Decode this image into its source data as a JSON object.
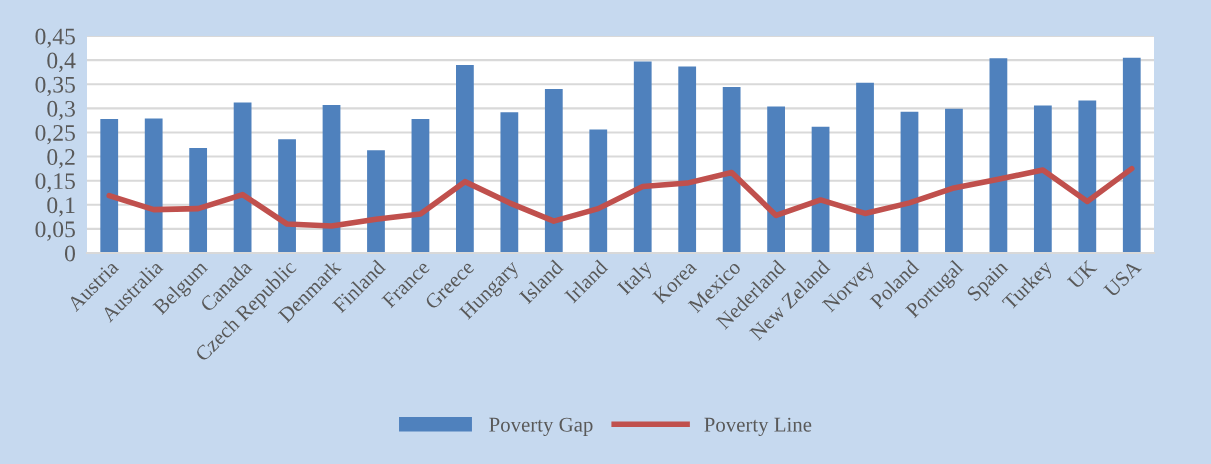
{
  "chart_data": {
    "type": "bar",
    "categories": [
      "Austria",
      "Australia",
      "Belgum",
      "Canada",
      "Czech Republic",
      "Denmark",
      "Finland",
      "France",
      "Greece",
      "Hungary",
      "Island",
      "Irland",
      "Italy",
      "Korea",
      "Mexico",
      "Nederland",
      "New Zeland",
      "Norvey",
      "Poland",
      "Portugal",
      "Spain",
      "Turkey",
      "UK",
      "USA"
    ],
    "series": [
      {
        "name": "Poverty Gap",
        "color": "#4f81bd",
        "values": [
          0.278,
          0.279,
          0.218,
          0.312,
          0.236,
          0.307,
          0.213,
          0.278,
          0.39,
          0.292,
          0.34,
          0.256,
          0.397,
          0.387,
          0.344,
          0.304,
          0.262,
          0.353,
          0.293,
          0.299,
          0.404,
          0.306,
          0.316,
          0.405
        ]
      },
      {
        "name": "Poverty Line",
        "type": "line",
        "color": "#c0504d",
        "values": [
          0.119,
          0.09,
          0.092,
          0.121,
          0.06,
          0.056,
          0.07,
          0.081,
          0.148,
          0.104,
          0.066,
          0.092,
          0.138,
          0.145,
          0.167,
          0.078,
          0.11,
          0.082,
          0.104,
          0.135,
          0.153,
          0.172,
          0.107,
          0.175
        ]
      }
    ],
    "ylim": [
      0,
      0.45
    ],
    "yticks": [
      {
        "value": 0,
        "label": "0"
      },
      {
        "value": 0.05,
        "label": "0,05"
      },
      {
        "value": 0.1,
        "label": "0,1"
      },
      {
        "value": 0.15,
        "label": "0,15"
      },
      {
        "value": 0.2,
        "label": "0,2"
      },
      {
        "value": 0.25,
        "label": "0,25"
      },
      {
        "value": 0.3,
        "label": "0,3"
      },
      {
        "value": 0.35,
        "label": "0,35"
      },
      {
        "value": 0.4,
        "label": "0,4"
      },
      {
        "value": 0.45,
        "label": "0,45"
      }
    ],
    "grid": "y",
    "legend": "bottom",
    "marker": "none",
    "line_style": "solid"
  }
}
